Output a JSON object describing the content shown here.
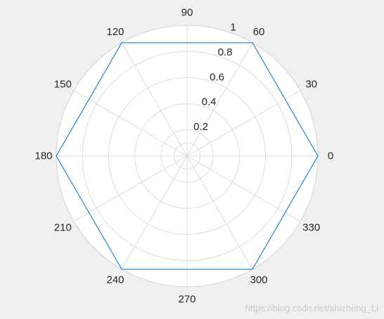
{
  "chart_data": {
    "type": "line",
    "subtype": "polar",
    "title": "",
    "theta_ticks": [
      "0",
      "30",
      "60",
      "90",
      "120",
      "150",
      "180",
      "210",
      "240",
      "270",
      "300",
      "330"
    ],
    "r_ticks": [
      "0.2",
      "0.4",
      "0.6",
      "0.8",
      "1"
    ],
    "rlim": [
      0,
      1
    ],
    "grid": true,
    "series": [
      {
        "theta_deg": [
          0,
          60,
          120,
          180,
          240,
          300,
          360
        ],
        "r": [
          1,
          1,
          1,
          1,
          1,
          1,
          1
        ],
        "color": "#0072bd"
      }
    ]
  },
  "colors": {
    "background": "#f0f0f0",
    "axes_face": "#ffffff",
    "grid": "#dcdcdc",
    "outer_ring": "#d4d4d4",
    "line": "#0072bd",
    "text": "#262626"
  },
  "watermark": "https://blog.csdn.net/shizheng_Li"
}
